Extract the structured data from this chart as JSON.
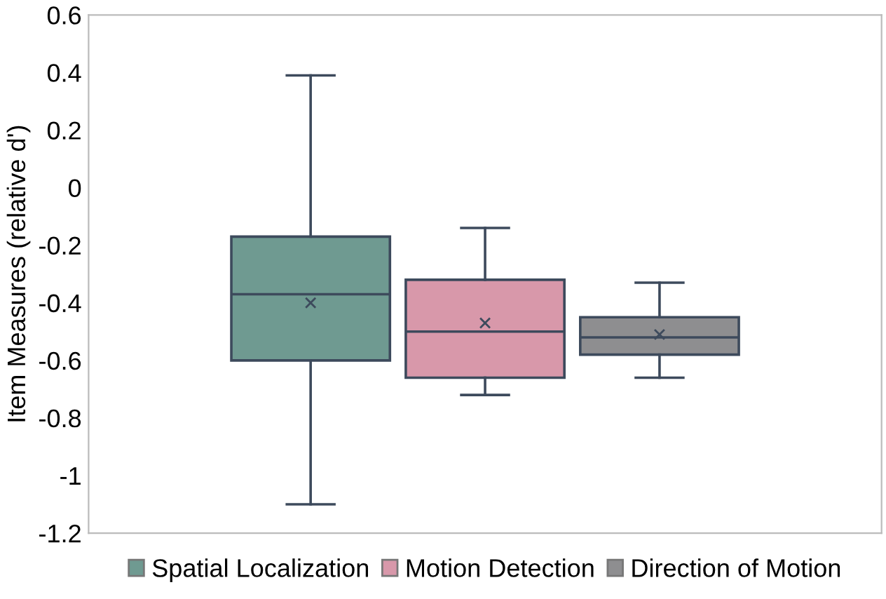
{
  "chart_data": {
    "type": "box",
    "ylabel": "Item Measures (relative d')",
    "categories": [
      null
    ],
    "series": [
      {
        "name": "Spatial Localization",
        "color": "#6f9a91",
        "boxes": [
          {
            "low": -1.1,
            "q1": -0.6,
            "median": -0.37,
            "q3": -0.17,
            "high": 0.39,
            "mean": -0.4
          }
        ]
      },
      {
        "name": "Motion Detection",
        "color": "#d898aa",
        "boxes": [
          {
            "low": -0.72,
            "q1": -0.66,
            "median": -0.5,
            "q3": -0.32,
            "high": -0.14,
            "mean": -0.47
          }
        ]
      },
      {
        "name": "Direction of Motion",
        "color": "#8e8e90",
        "boxes": [
          {
            "low": -0.66,
            "q1": -0.58,
            "median": -0.52,
            "q3": -0.45,
            "high": -0.33,
            "mean": -0.51
          }
        ]
      }
    ],
    "ylim": [
      -1.2,
      0.6
    ],
    "yticks": [
      -1.2,
      -1,
      -0.8,
      -0.6,
      -0.4,
      -0.2,
      0,
      0.2,
      0.4,
      0.6
    ],
    "grid": false,
    "legend": "bottom"
  }
}
